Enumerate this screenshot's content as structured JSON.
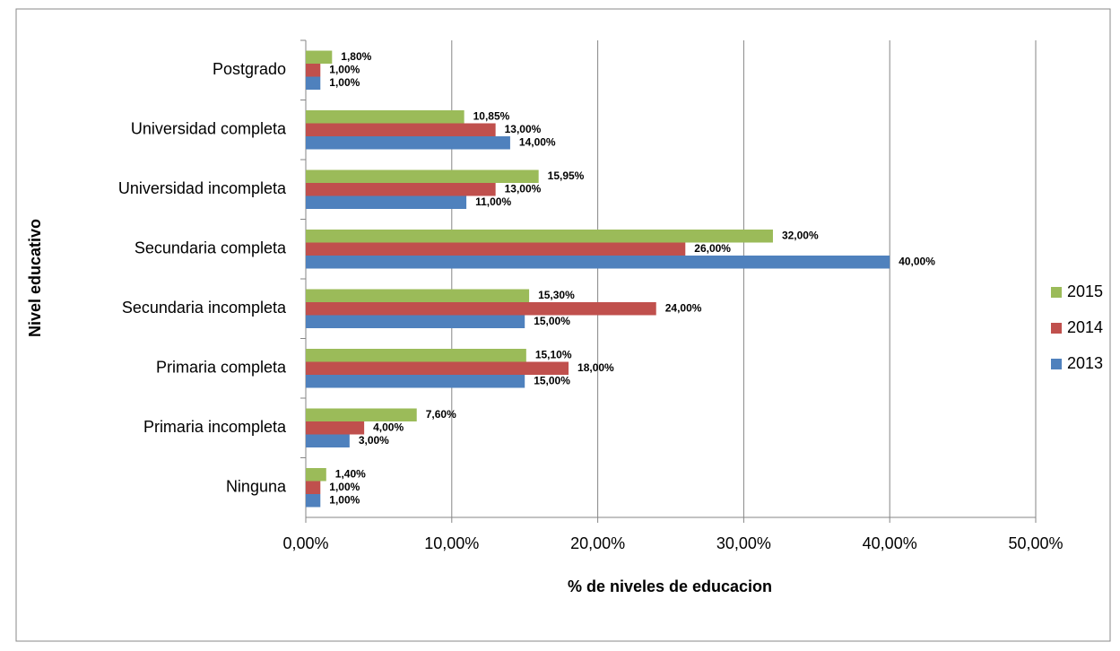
{
  "chart_data": {
    "type": "bar",
    "orientation": "horizontal",
    "x_label": "% de niveles de educacion",
    "y_label": "Nivel educativo",
    "categories": [
      "Postgrado",
      "Universidad completa",
      "Universidad incompleta",
      "Secundaria completa",
      "Secundaria incompleta",
      "Primaria completa",
      "Primaria incompleta",
      "Ninguna"
    ],
    "series": [
      {
        "name": "2015",
        "color": "#9bbb59",
        "values": [
          1.8,
          10.85,
          15.95,
          32,
          15.3,
          15.1,
          7.6,
          1.4
        ],
        "value_labels": [
          "1,80%",
          "10,85%",
          "15,95%",
          "32,00%",
          "15,30%",
          "15,10%",
          "7,60%",
          "1,40%"
        ]
      },
      {
        "name": "2014",
        "color": "#c0504d",
        "values": [
          1,
          13,
          13,
          26,
          24,
          18,
          4,
          1
        ],
        "value_labels": [
          "1,00%",
          "13,00%",
          "13,00%",
          "26,00%",
          "24,00%",
          "18,00%",
          "4,00%",
          "1,00%"
        ]
      },
      {
        "name": "2013",
        "color": "#4f81bd",
        "values": [
          1,
          14,
          11,
          40,
          15,
          15,
          3,
          1
        ],
        "value_labels": [
          "1,00%",
          "14,00%",
          "11,00%",
          "40,00%",
          "15,00%",
          "15,00%",
          "3,00%",
          "1,00%"
        ]
      }
    ],
    "xlim": [
      0,
      50
    ],
    "xticks": [
      {
        "value": 0,
        "label": "0,00%"
      },
      {
        "value": 10,
        "label": "10,00%"
      },
      {
        "value": 20,
        "label": "20,00%"
      },
      {
        "value": 30,
        "label": "30,00%"
      },
      {
        "value": 40,
        "label": "40,00%"
      },
      {
        "value": 50,
        "label": "50,00%"
      }
    ],
    "grid": true,
    "legend": "right"
  }
}
